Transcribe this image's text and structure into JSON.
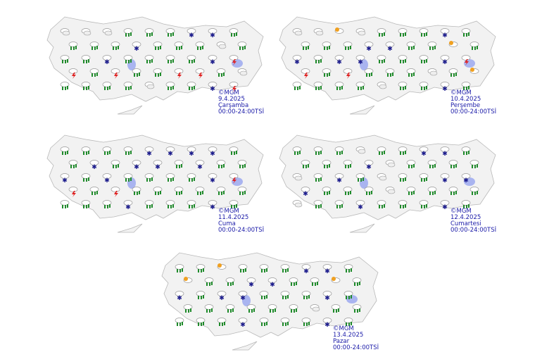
{
  "maps": [
    {
      "copyright": "©MGM",
      "date": "9.4.2025",
      "day": "Çarşamba",
      "period": "00:00-24:00TSİ",
      "icons": [
        "cloud",
        "cloud",
        "cloud",
        "rain",
        "rain",
        "rain",
        "snow",
        "snow",
        "rain",
        "rain",
        "rain",
        "rain",
        "snow",
        "rain",
        "rain",
        "rain",
        "cloud",
        "rain",
        "rain",
        "rain",
        "snow",
        "rain",
        "rain",
        "rain",
        "rain",
        "snow",
        "storm",
        "storm",
        "rain",
        "storm",
        "rain",
        "rain",
        "storm",
        "storm",
        "rain",
        "cloud",
        "rain",
        "rain",
        "rain",
        "rain",
        "cloud",
        "rain",
        "rain",
        "snow",
        "storm"
      ]
    },
    {
      "copyright": "©MGM",
      "date": "10.4.2025",
      "day": "Perşembe",
      "period": "00:00-24:00TSİ",
      "icons": [
        "cloud",
        "cloud",
        "sun",
        "cloud",
        "rain",
        "rain",
        "rain",
        "snow",
        "rain",
        "rain",
        "rain",
        "rain",
        "snow",
        "snow",
        "rain",
        "rain",
        "sun",
        "rain",
        "snow",
        "rain",
        "snow",
        "snow",
        "rain",
        "rain",
        "rain",
        "snow",
        "storm",
        "storm",
        "rain",
        "storm",
        "rain",
        "rain",
        "rain",
        "cloud",
        "rain",
        "sun",
        "rain",
        "rain",
        "rain",
        "rain",
        "cloud",
        "rain",
        "rain",
        "snow",
        "rain"
      ]
    },
    {
      "copyright": "©MGM",
      "date": "11.4.2025",
      "day": "Cuma",
      "period": "00:00-24:00TSİ",
      "icons": [
        "rain",
        "rain",
        "rain",
        "rain",
        "snow",
        "snow",
        "snow",
        "snow",
        "rain",
        "rain",
        "snow",
        "rain",
        "snow",
        "snow",
        "rain",
        "snow",
        "rain",
        "rain",
        "snow",
        "rain",
        "snow",
        "rain",
        "rain",
        "rain",
        "rain",
        "snow",
        "storm",
        "storm",
        "rain",
        "storm",
        "rain",
        "rain",
        "rain",
        "rain",
        "rain",
        "rain",
        "rain",
        "rain",
        "rain",
        "snow",
        "rain",
        "rain",
        "rain",
        "snow",
        "rain"
      ]
    },
    {
      "copyright": "©MGM",
      "date": "12.4.2025",
      "day": "Cumartesi",
      "period": "00:00-24:00TSİ",
      "icons": [
        "rain",
        "rain",
        "rain",
        "cloud",
        "rain",
        "rain",
        "snow",
        "snow",
        "rain",
        "rain",
        "rain",
        "rain",
        "snow",
        "cloud",
        "rain",
        "rain",
        "rain",
        "rain",
        "cloud",
        "rain",
        "snow",
        "rain",
        "cloud",
        "rain",
        "rain",
        "snow",
        "snow",
        "snow",
        "rain",
        "rain",
        "rain",
        "cloud",
        "rain",
        "rain",
        "rain",
        "rain",
        "cloud",
        "rain",
        "rain",
        "snow",
        "rain",
        "rain",
        "rain",
        "snow",
        "rain"
      ]
    },
    {
      "copyright": "©MGM",
      "date": "13.4.2025",
      "day": "Pazar",
      "period": "00:00-24:00TSİ",
      "icons": [
        "rain",
        "rain",
        "sun",
        "rain",
        "rain",
        "rain",
        "snow",
        "snow",
        "rain",
        "sun",
        "rain",
        "rain",
        "snow",
        "snow",
        "rain",
        "rain",
        "sun",
        "rain",
        "snow",
        "rain",
        "snow",
        "snow",
        "rain",
        "rain",
        "rain",
        "snow",
        "rain",
        "rain",
        "rain",
        "rain",
        "rain",
        "rain",
        "rain",
        "cloud",
        "rain",
        "rain",
        "rain",
        "rain",
        "rain",
        "snow",
        "rain",
        "rain",
        "rain",
        "snow",
        "rain"
      ]
    }
  ],
  "colors": {
    "land": "#f2f2f2",
    "border": "#b8b8b8",
    "water": "#a9b4f0",
    "rain": "#1e8a2a",
    "snow": "#1a1a8c",
    "storm": "#e02020",
    "sun": "#f0a020",
    "label": "#1a1aa8"
  }
}
